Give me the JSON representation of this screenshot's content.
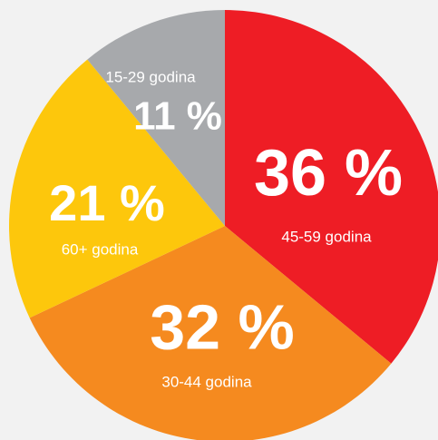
{
  "chart_data": {
    "type": "pie",
    "categories": [
      "45-59 godina",
      "30-44 godina",
      "60+ godina",
      "15-29 godina"
    ],
    "values": [
      36,
      32,
      21,
      11
    ],
    "value_labels": [
      "36 %",
      "32 %",
      "21 %",
      "11 %"
    ],
    "colors": [
      "#ee1d25",
      "#f58a1f",
      "#fdc70c",
      "#a7a9ac"
    ]
  }
}
